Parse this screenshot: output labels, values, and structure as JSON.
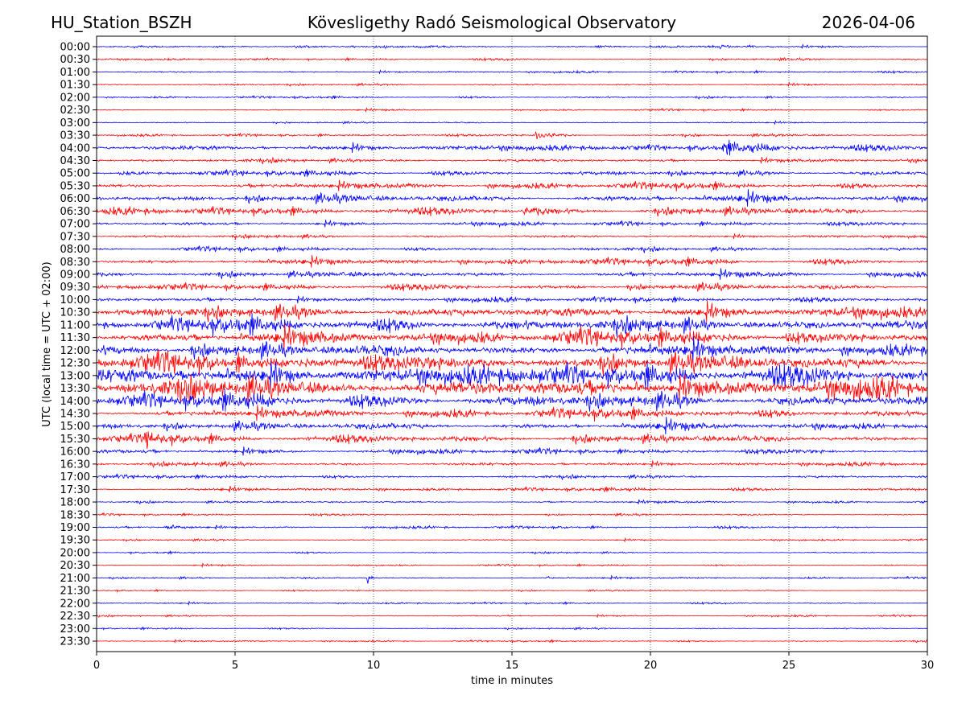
{
  "header": {
    "station": "HU_Station_BSZH",
    "title": "Kövesligethy Radó Seismological Observatory",
    "date": "2026-04-06"
  },
  "chart_data": {
    "type": "line",
    "title": "Kövesligethy Radó Seismological Observatory",
    "xlabel": "time in minutes",
    "ylabel": "UTC (local time = UTC + 02:00)",
    "xlim": [
      0,
      30
    ],
    "xticks": [
      "0",
      "5",
      "10",
      "15",
      "20",
      "25",
      "30"
    ],
    "grid": "vertical dotted at 5-minute ticks",
    "colors": [
      "#0000ff",
      "#ff0000"
    ],
    "rows": [
      "00:00",
      "00:30",
      "01:00",
      "01:30",
      "02:00",
      "02:30",
      "03:00",
      "03:30",
      "04:00",
      "04:30",
      "05:00",
      "05:30",
      "06:00",
      "06:30",
      "07:00",
      "07:30",
      "08:00",
      "08:30",
      "09:00",
      "09:30",
      "10:00",
      "10:30",
      "11:00",
      "11:30",
      "12:00",
      "12:30",
      "13:00",
      "13:30",
      "14:00",
      "14:30",
      "15:00",
      "15:30",
      "16:00",
      "16:30",
      "17:00",
      "17:30",
      "18:00",
      "18:30",
      "19:00",
      "19:30",
      "20:00",
      "20:30",
      "21:00",
      "21:30",
      "22:00",
      "22:30",
      "23:00",
      "23:30"
    ],
    "relative_amplitude": [
      0.05,
      0.05,
      0.05,
      0.05,
      0.05,
      0.04,
      0.04,
      0.06,
      0.15,
      0.1,
      0.12,
      0.15,
      0.2,
      0.18,
      0.1,
      0.08,
      0.1,
      0.15,
      0.15,
      0.15,
      0.12,
      0.3,
      0.35,
      0.35,
      0.35,
      0.45,
      0.5,
      0.55,
      0.35,
      0.22,
      0.2,
      0.2,
      0.12,
      0.1,
      0.08,
      0.08,
      0.06,
      0.05,
      0.06,
      0.04,
      0.04,
      0.04,
      0.05,
      0.04,
      0.04,
      0.04,
      0.04,
      0.04
    ],
    "events": [
      {
        "row": "03:30",
        "minute": 16.0,
        "duration": 1.5,
        "strength": 0.35
      },
      {
        "row": "04:00",
        "minute": 23.0,
        "duration": 4.0,
        "strength": 0.25
      },
      {
        "row": "06:30",
        "minute": 15.7,
        "duration": 3.0,
        "strength": 0.2
      },
      {
        "row": "15:30",
        "minute": 1.8,
        "duration": 1.5,
        "strength": 0.4
      },
      {
        "row": "19:00",
        "minute": 2.7,
        "duration": 2.0,
        "strength": 0.15
      },
      {
        "row": "21:00",
        "minute": 9.8,
        "duration": 0.4,
        "strength": 0.3
      },
      {
        "row": "21:00",
        "minute": 16.3,
        "duration": 0.4,
        "strength": 0.15
      }
    ]
  }
}
